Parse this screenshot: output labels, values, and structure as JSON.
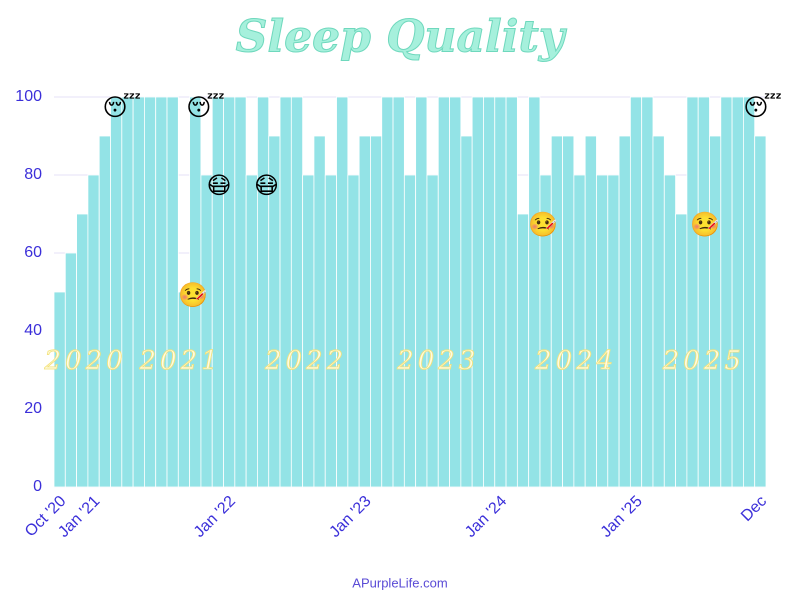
{
  "chart_data": {
    "type": "bar",
    "title": "Sleep Quality",
    "footer": "APurpleLife.com",
    "categories": [
      "Oct '20",
      null,
      null,
      "Jan '21",
      null,
      null,
      null,
      null,
      null,
      null,
      null,
      null,
      null,
      null,
      null,
      "Jan '22",
      null,
      null,
      null,
      null,
      null,
      null,
      null,
      null,
      null,
      null,
      null,
      "Jan '23",
      null,
      null,
      null,
      null,
      null,
      null,
      null,
      null,
      null,
      null,
      null,
      "Jan '24",
      null,
      null,
      null,
      null,
      null,
      null,
      null,
      null,
      null,
      null,
      null,
      "Jan '25",
      null,
      null,
      null,
      null,
      null,
      null,
      null,
      null,
      null,
      null,
      "Dec"
    ],
    "values": [
      50,
      60,
      70,
      80,
      90,
      100,
      100,
      100,
      100,
      100,
      100,
      50,
      100,
      80,
      100,
      100,
      100,
      80,
      100,
      90,
      100,
      100,
      80,
      90,
      80,
      100,
      80,
      90,
      90,
      100,
      100,
      80,
      100,
      80,
      100,
      100,
      90,
      100,
      100,
      100,
      100,
      70,
      100,
      80,
      90,
      90,
      80,
      90,
      80,
      80,
      90,
      100,
      100,
      90,
      80,
      70,
      100,
      100,
      90,
      100,
      100,
      100,
      90
    ],
    "color": "#93e3e6",
    "ylim": [
      0,
      100
    ],
    "yticks": [
      0,
      20,
      40,
      60,
      80,
      100
    ],
    "grid": true,
    "year_labels": [
      {
        "text": "2020",
        "x": 2.3,
        "y": 32
      },
      {
        "text": "2021",
        "x": 10.7,
        "y": 32
      },
      {
        "text": "2022",
        "x": 21.8,
        "y": 32
      },
      {
        "text": "2023",
        "x": 33.5,
        "y": 32
      },
      {
        "text": "2024",
        "x": 45.7,
        "y": 32
      },
      {
        "text": "2025",
        "x": 57,
        "y": 32
      }
    ],
    "annotations": [
      {
        "text": "😴",
        "x": 5.5,
        "y": 97
      },
      {
        "text": "🤒",
        "x": 11.8,
        "y": 49
      },
      {
        "text": "😴",
        "x": 12.9,
        "y": 97
      },
      {
        "text": "😷",
        "x": 14.1,
        "y": 77
      },
      {
        "text": "😷",
        "x": 18.3,
        "y": 77
      },
      {
        "text": "🤒",
        "x": 42.8,
        "y": 67
      },
      {
        "text": "🤒",
        "x": 57.1,
        "y": 67
      },
      {
        "text": "😴",
        "x": 62.2,
        "y": 97
      }
    ]
  }
}
